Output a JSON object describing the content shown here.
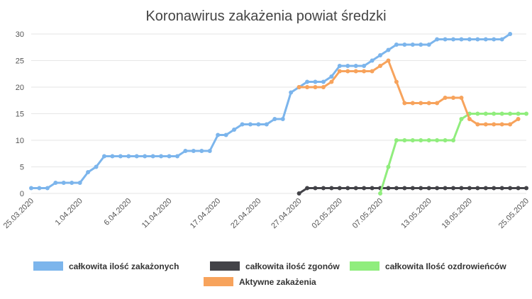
{
  "chart_data": {
    "type": "line",
    "title": "Koronawirus zakażenia powiat średzki",
    "xlabel": "",
    "ylabel": "",
    "ylim": [
      0,
      30
    ],
    "yticks": [
      0,
      5,
      10,
      15,
      20,
      25,
      30
    ],
    "grid": true,
    "legend_position": "bottom",
    "x_tick_labels": [
      "25.03.2020",
      "1.04.2020",
      "6.04.2020",
      "11.04.2020",
      "17.04.2020",
      "22.04.2020",
      "27.04.2020",
      "02.05.2020",
      "07.05.2020",
      "13.05.2020",
      "18.05.2020",
      "25.05.2020"
    ],
    "x_tick_index": [
      0,
      6,
      12,
      17,
      23,
      28,
      33,
      38,
      43,
      49,
      54,
      61
    ],
    "n_points": 62,
    "series": [
      {
        "name": "całkowita ilość zakażonych",
        "color": "#7cb5ec",
        "start_index": 0,
        "values": [
          1,
          1,
          1,
          2,
          2,
          2,
          2,
          4,
          5,
          7,
          7,
          7,
          7,
          7,
          7,
          7,
          7,
          7,
          7,
          8,
          8,
          8,
          8,
          11,
          11,
          12,
          13,
          13,
          13,
          13,
          14,
          14,
          19,
          20,
          21,
          21,
          21,
          22,
          24,
          24,
          24,
          24,
          25,
          26,
          27,
          28,
          28,
          28,
          28,
          28,
          29,
          29,
          29,
          29,
          29,
          29,
          29,
          29,
          29,
          30
        ]
      },
      {
        "name": "całkowita ilość zgonów",
        "color": "#434348",
        "start_index": 33,
        "values": [
          0,
          1,
          1,
          1,
          1,
          1,
          1,
          1,
          1,
          1,
          1,
          1,
          1,
          1,
          1,
          1,
          1,
          1,
          1,
          1,
          1,
          1,
          1,
          1,
          1,
          1,
          1,
          1,
          1
        ]
      },
      {
        "name": "całkowita Ilość ozdrowieńców",
        "color": "#90ed7d",
        "start_index": 43,
        "values": [
          0,
          5,
          10,
          10,
          10,
          10,
          10,
          10,
          10,
          10,
          14,
          15,
          15,
          15,
          15,
          15,
          15,
          15,
          15
        ]
      },
      {
        "name": "Aktywne zakażenia",
        "color": "#f7a35c",
        "start_index": 33,
        "values": [
          20,
          20,
          20,
          20,
          21,
          23,
          23,
          23,
          23,
          23,
          24,
          25,
          21,
          17,
          17,
          17,
          17,
          17,
          18,
          18,
          18,
          14,
          13,
          13,
          13,
          13,
          13,
          14
        ]
      }
    ]
  }
}
